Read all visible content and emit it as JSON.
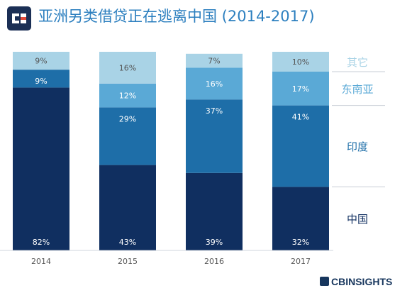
{
  "header": {
    "title": "亚洲另类借贷正在逃离中国 (2014-2017)",
    "logo": "cb-insights-logo",
    "logo_color": "#1b2f55",
    "logo_accent": "#e24b3b"
  },
  "brand": {
    "name": "CBINSIGHTS"
  },
  "colors": {
    "中国": "#102f60",
    "印度": "#1e6ea8",
    "东南亚": "#5aa9d6",
    "其它": "#a9d3e6"
  },
  "chart_data": {
    "type": "bar",
    "stacked": true,
    "normalized": true,
    "title": "亚洲另类借贷正在逃离中国 (2014-2017)",
    "xlabel": "",
    "ylabel": "",
    "ylim": [
      0,
      100
    ],
    "categories": [
      "2014",
      "2015",
      "2016",
      "2017"
    ],
    "series": [
      {
        "name": "中国",
        "values": [
          82,
          43,
          39,
          32
        ]
      },
      {
        "name": "印度",
        "values": [
          9,
          29,
          37,
          41
        ]
      },
      {
        "name": "东南亚",
        "values": [
          0,
          12,
          16,
          17
        ]
      },
      {
        "name": "其它",
        "values": [
          9,
          16,
          7,
          10
        ]
      }
    ],
    "data_labels": [
      [
        "82%",
        "43%",
        "39%",
        "32%"
      ],
      [
        "9%",
        "29%",
        "37%",
        "41%"
      ],
      [
        "",
        "12%",
        "16%",
        "17%"
      ],
      [
        "9%",
        "16%",
        "7%",
        "10%"
      ]
    ],
    "legend": "right",
    "grid": false
  }
}
